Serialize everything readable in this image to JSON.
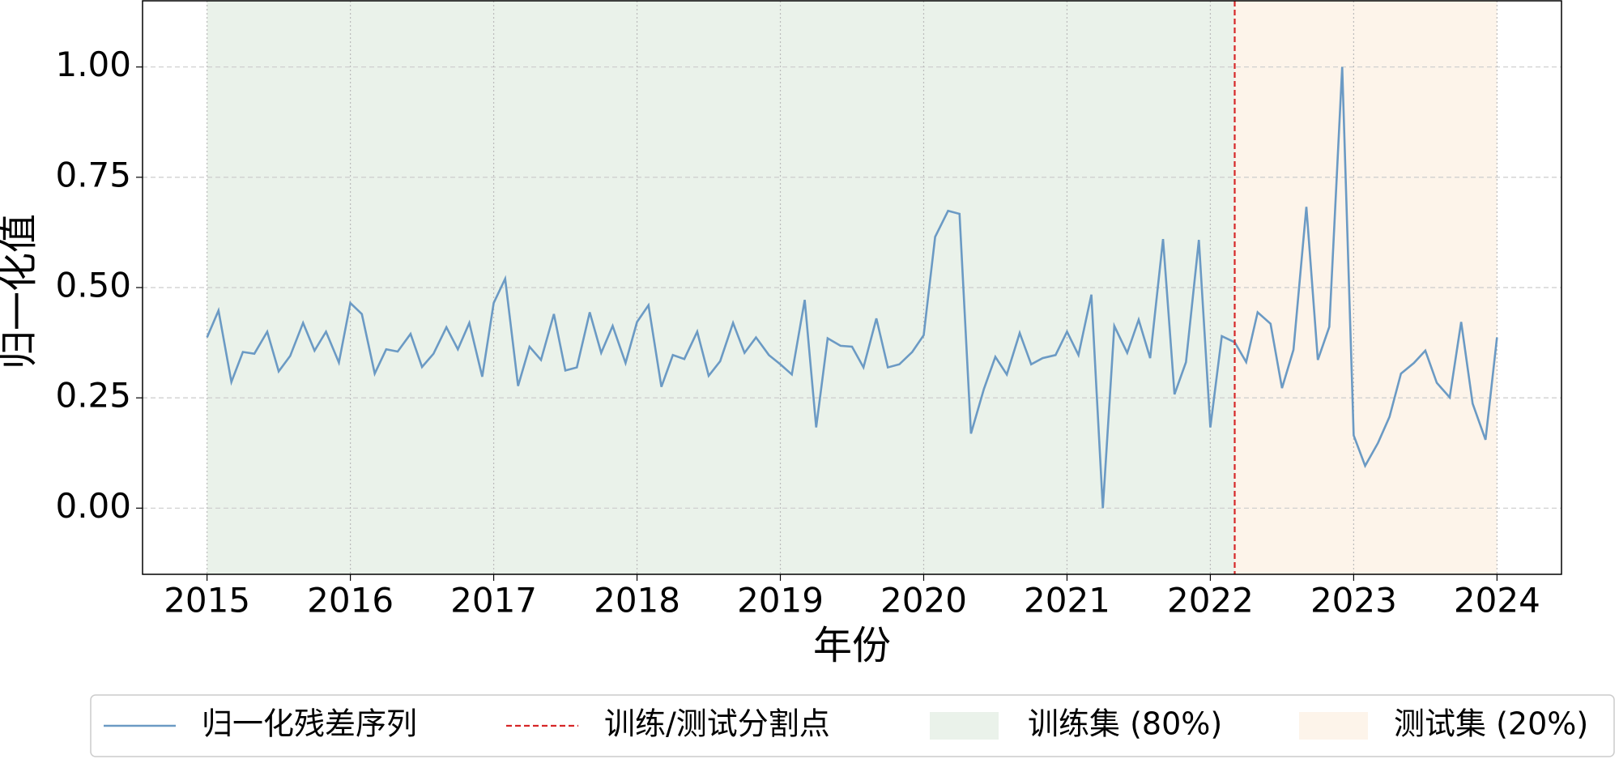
{
  "chart_data": {
    "type": "line",
    "x_label": "年份",
    "y_label": "归一化值",
    "x": [
      2015.0,
      2015.08,
      2015.17,
      2015.25,
      2015.33,
      2015.42,
      2015.5,
      2015.58,
      2015.67,
      2015.75,
      2015.83,
      2015.92,
      2016.0,
      2016.08,
      2016.17,
      2016.25,
      2016.33,
      2016.42,
      2016.5,
      2016.58,
      2016.67,
      2016.75,
      2016.83,
      2016.92,
      2017.0,
      2017.08,
      2017.17,
      2017.25,
      2017.33,
      2017.42,
      2017.5,
      2017.58,
      2017.67,
      2017.75,
      2017.83,
      2017.92,
      2018.0,
      2018.08,
      2018.17,
      2018.25,
      2018.33,
      2018.42,
      2018.5,
      2018.58,
      2018.67,
      2018.75,
      2018.83,
      2018.92,
      2019.0,
      2019.08,
      2019.17,
      2019.25,
      2019.33,
      2019.42,
      2019.5,
      2019.58,
      2019.67,
      2019.75,
      2019.83,
      2019.92,
      2020.0,
      2020.08,
      2020.17,
      2020.25,
      2020.33,
      2020.42,
      2020.5,
      2020.58,
      2020.67,
      2020.75,
      2020.83,
      2020.92,
      2021.0,
      2021.08,
      2021.17,
      2021.25,
      2021.33,
      2021.42,
      2021.5,
      2021.58,
      2021.67,
      2021.75,
      2021.83,
      2021.92,
      2022.0,
      2022.08,
      2022.17,
      2022.25,
      2022.33,
      2022.42,
      2022.5,
      2022.58,
      2022.67,
      2022.75,
      2022.83,
      2022.92,
      2023.0,
      2023.08,
      2023.17,
      2023.25,
      2023.33,
      2023.42,
      2023.5,
      2023.58,
      2023.67,
      2023.75,
      2023.83,
      2023.92,
      2024.0
    ],
    "series": [
      {
        "name": "归一化残差序列",
        "color": "#6b9ac4",
        "values": [
          0.387,
          0.448,
          0.286,
          0.354,
          0.35,
          0.4,
          0.31,
          0.345,
          0.42,
          0.357,
          0.4,
          0.33,
          0.465,
          0.44,
          0.305,
          0.36,
          0.355,
          0.395,
          0.32,
          0.35,
          0.41,
          0.36,
          0.42,
          0.298,
          0.465,
          0.52,
          0.277,
          0.366,
          0.336,
          0.44,
          0.312,
          0.319,
          0.444,
          0.352,
          0.413,
          0.329,
          0.422,
          0.46,
          0.275,
          0.347,
          0.338,
          0.4,
          0.3,
          0.333,
          0.42,
          0.352,
          0.387,
          0.347,
          0.326,
          0.303,
          0.472,
          0.183,
          0.385,
          0.368,
          0.366,
          0.319,
          0.43,
          0.319,
          0.326,
          0.354,
          0.392,
          0.615,
          0.674,
          0.667,
          0.169,
          0.27,
          0.343,
          0.303,
          0.397,
          0.326,
          0.34,
          0.347,
          0.4,
          0.347,
          0.484,
          0.0,
          0.413,
          0.352,
          0.427,
          0.34,
          0.61,
          0.258,
          0.331,
          0.608,
          0.183,
          0.39,
          0.376,
          0.331,
          0.444,
          0.418,
          0.272,
          0.359,
          0.683,
          0.336,
          0.411,
          1.0,
          0.165,
          0.096,
          0.148,
          0.207,
          0.305,
          0.329,
          0.357,
          0.284,
          0.251,
          0.422,
          0.237,
          0.155,
          0.387
        ]
      }
    ],
    "split": {
      "name": "训练/测试分割点",
      "x": 2022.17,
      "color": "#d62728"
    },
    "spans": [
      {
        "name": "训练集 (80%)",
        "from": 2015.0,
        "to": 2022.17,
        "color": "#eaf2ea"
      },
      {
        "name": "测试集 (20%)",
        "from": 2022.17,
        "to": 2024.0,
        "color": "#fdf4ea"
      }
    ],
    "xlim": [
      2014.55,
      2024.45
    ],
    "ylim": [
      -0.15,
      1.15
    ],
    "xticks": [
      2015,
      2016,
      2017,
      2018,
      2019,
      2020,
      2021,
      2022,
      2023,
      2024
    ],
    "yticks": [
      {
        "value": 0,
        "label": "0.00"
      },
      {
        "value": 0.25,
        "label": "0.25"
      },
      {
        "value": 0.5,
        "label": "0.50"
      },
      {
        "value": 0.75,
        "label": "0.75"
      },
      {
        "value": 1,
        "label": "1.00"
      }
    ],
    "grid": true
  }
}
